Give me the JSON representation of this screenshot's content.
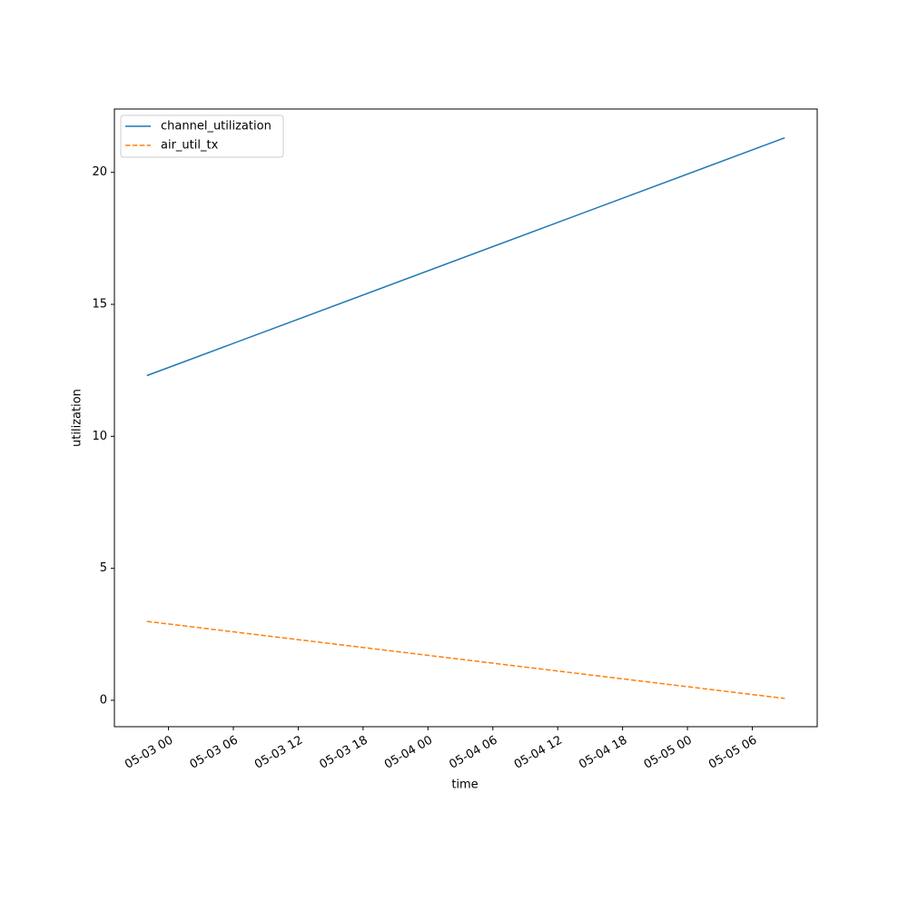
{
  "chart_data": {
    "type": "line",
    "x": [
      "05-02 22",
      "05-05 09"
    ],
    "series": [
      {
        "name": "channel_utilization",
        "color": "#1f77b4",
        "linestyle": "solid",
        "values": [
          12.3,
          21.31
        ]
      },
      {
        "name": "air_util_tx",
        "color": "#ff7f0e",
        "linestyle": "dashed",
        "values": [
          2.99,
          0.07
        ]
      }
    ],
    "xlabel": "time",
    "ylabel": "utilization",
    "xlim": [
      "05-02 19",
      "05-05 12"
    ],
    "xticks": [
      "05-03 00",
      "05-03 06",
      "05-03 12",
      "05-03 18",
      "05-04 00",
      "05-04 06",
      "05-04 12",
      "05-04 18",
      "05-05 00",
      "05-05 06"
    ],
    "ylim": [
      -1.0,
      22.4
    ],
    "yticks": [
      0,
      5,
      10,
      15,
      20
    ],
    "legend": "upper left",
    "grid": false
  }
}
